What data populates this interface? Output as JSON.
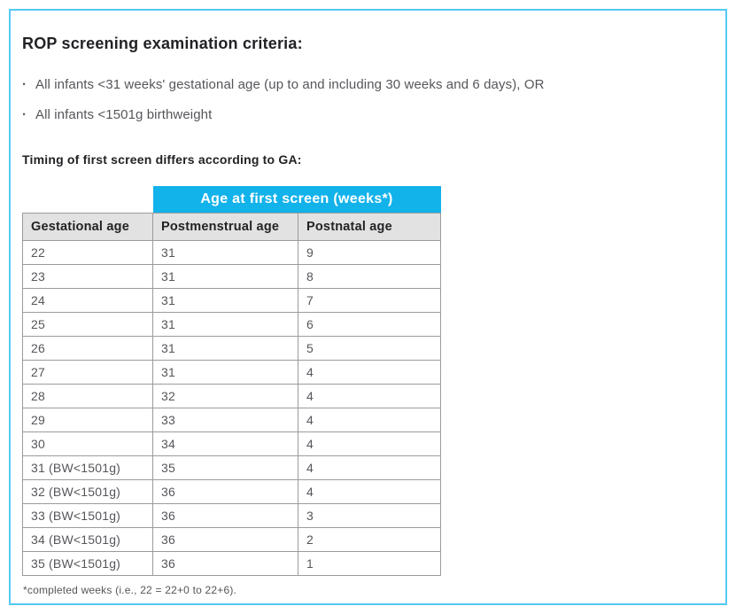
{
  "content": {
    "title": "ROP screening examination criteria:",
    "bullet_marker": "·",
    "bullets": [
      "All infants <31 weeks' gestational age (up to and including 30 weeks and 6 days), OR",
      "All infants <1501g birthweight"
    ],
    "subtitle": "Timing of first screen differs according to GA:",
    "footnote": "*completed weeks (i.e., 22 = 22+0 to 22+6)."
  },
  "table": {
    "span_header": "Age at first screen (weeks*)",
    "columns": [
      "Gestational age",
      "Postmenstrual age",
      "Postnatal age"
    ],
    "rows": [
      [
        "22",
        "31",
        "9"
      ],
      [
        "23",
        "31",
        "8"
      ],
      [
        "24",
        "31",
        "7"
      ],
      [
        "25",
        "31",
        "6"
      ],
      [
        "26",
        "31",
        "5"
      ],
      [
        "27",
        "31",
        "4"
      ],
      [
        "28",
        "32",
        "4"
      ],
      [
        "29",
        "33",
        "4"
      ],
      [
        "30",
        "34",
        "4"
      ],
      [
        "31 (BW<1501g)",
        "35",
        "4"
      ],
      [
        "32 (BW<1501g)",
        "36",
        "4"
      ],
      [
        "33 (BW<1501g)",
        "36",
        "3"
      ],
      [
        "34 (BW<1501g)",
        "36",
        "2"
      ],
      [
        "35 (BW<1501g)",
        "36",
        "1"
      ]
    ]
  },
  "colors": {
    "accent_cyan": "#12b2ea",
    "frame_border": "#54c8f0",
    "header_row_bg": "#e2e2e2",
    "table_border": "#9b9b9b",
    "heading_text": "#222226",
    "body_text": "#55565a"
  }
}
